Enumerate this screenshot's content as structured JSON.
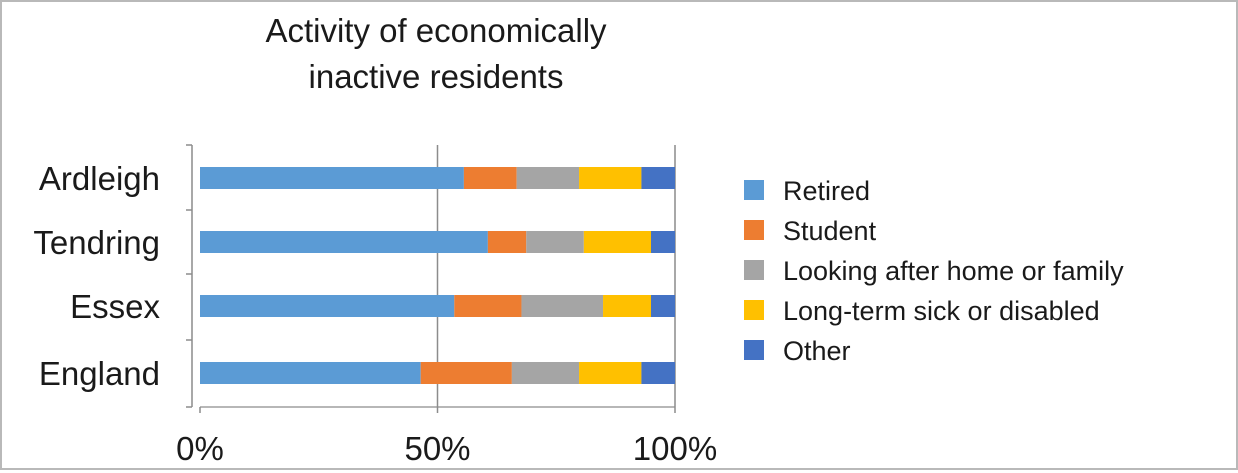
{
  "chart_data": {
    "type": "bar",
    "orientation": "horizontal",
    "stacked": true,
    "normalized": true,
    "title_lines": [
      "Activity of economically",
      "inactive residents"
    ],
    "categories": [
      "Ardleigh",
      "Tendring",
      "Essex",
      "England"
    ],
    "xlim": [
      0,
      100
    ],
    "x_ticks": [
      {
        "value": 0,
        "label": "0%"
      },
      {
        "value": 50,
        "label": "50%"
      },
      {
        "value": 100,
        "label": "100%"
      }
    ],
    "grid": "vertical at 50%",
    "legend_position": "right",
    "series": [
      {
        "name": "Retired",
        "color": "#5B9BD5",
        "values": [
          55,
          60,
          53,
          46
        ]
      },
      {
        "name": "Student",
        "color": "#ED7D31",
        "values": [
          11,
          8,
          14,
          19
        ]
      },
      {
        "name": "Looking after home or family",
        "color": "#A5A5A5",
        "values": [
          13,
          12,
          17,
          14
        ]
      },
      {
        "name": "Long-term sick or disabled",
        "color": "#FFC000",
        "values": [
          13,
          14,
          10,
          13
        ]
      },
      {
        "name": "Other",
        "color": "#4472C4",
        "values": [
          7,
          5,
          5,
          7
        ]
      }
    ]
  }
}
